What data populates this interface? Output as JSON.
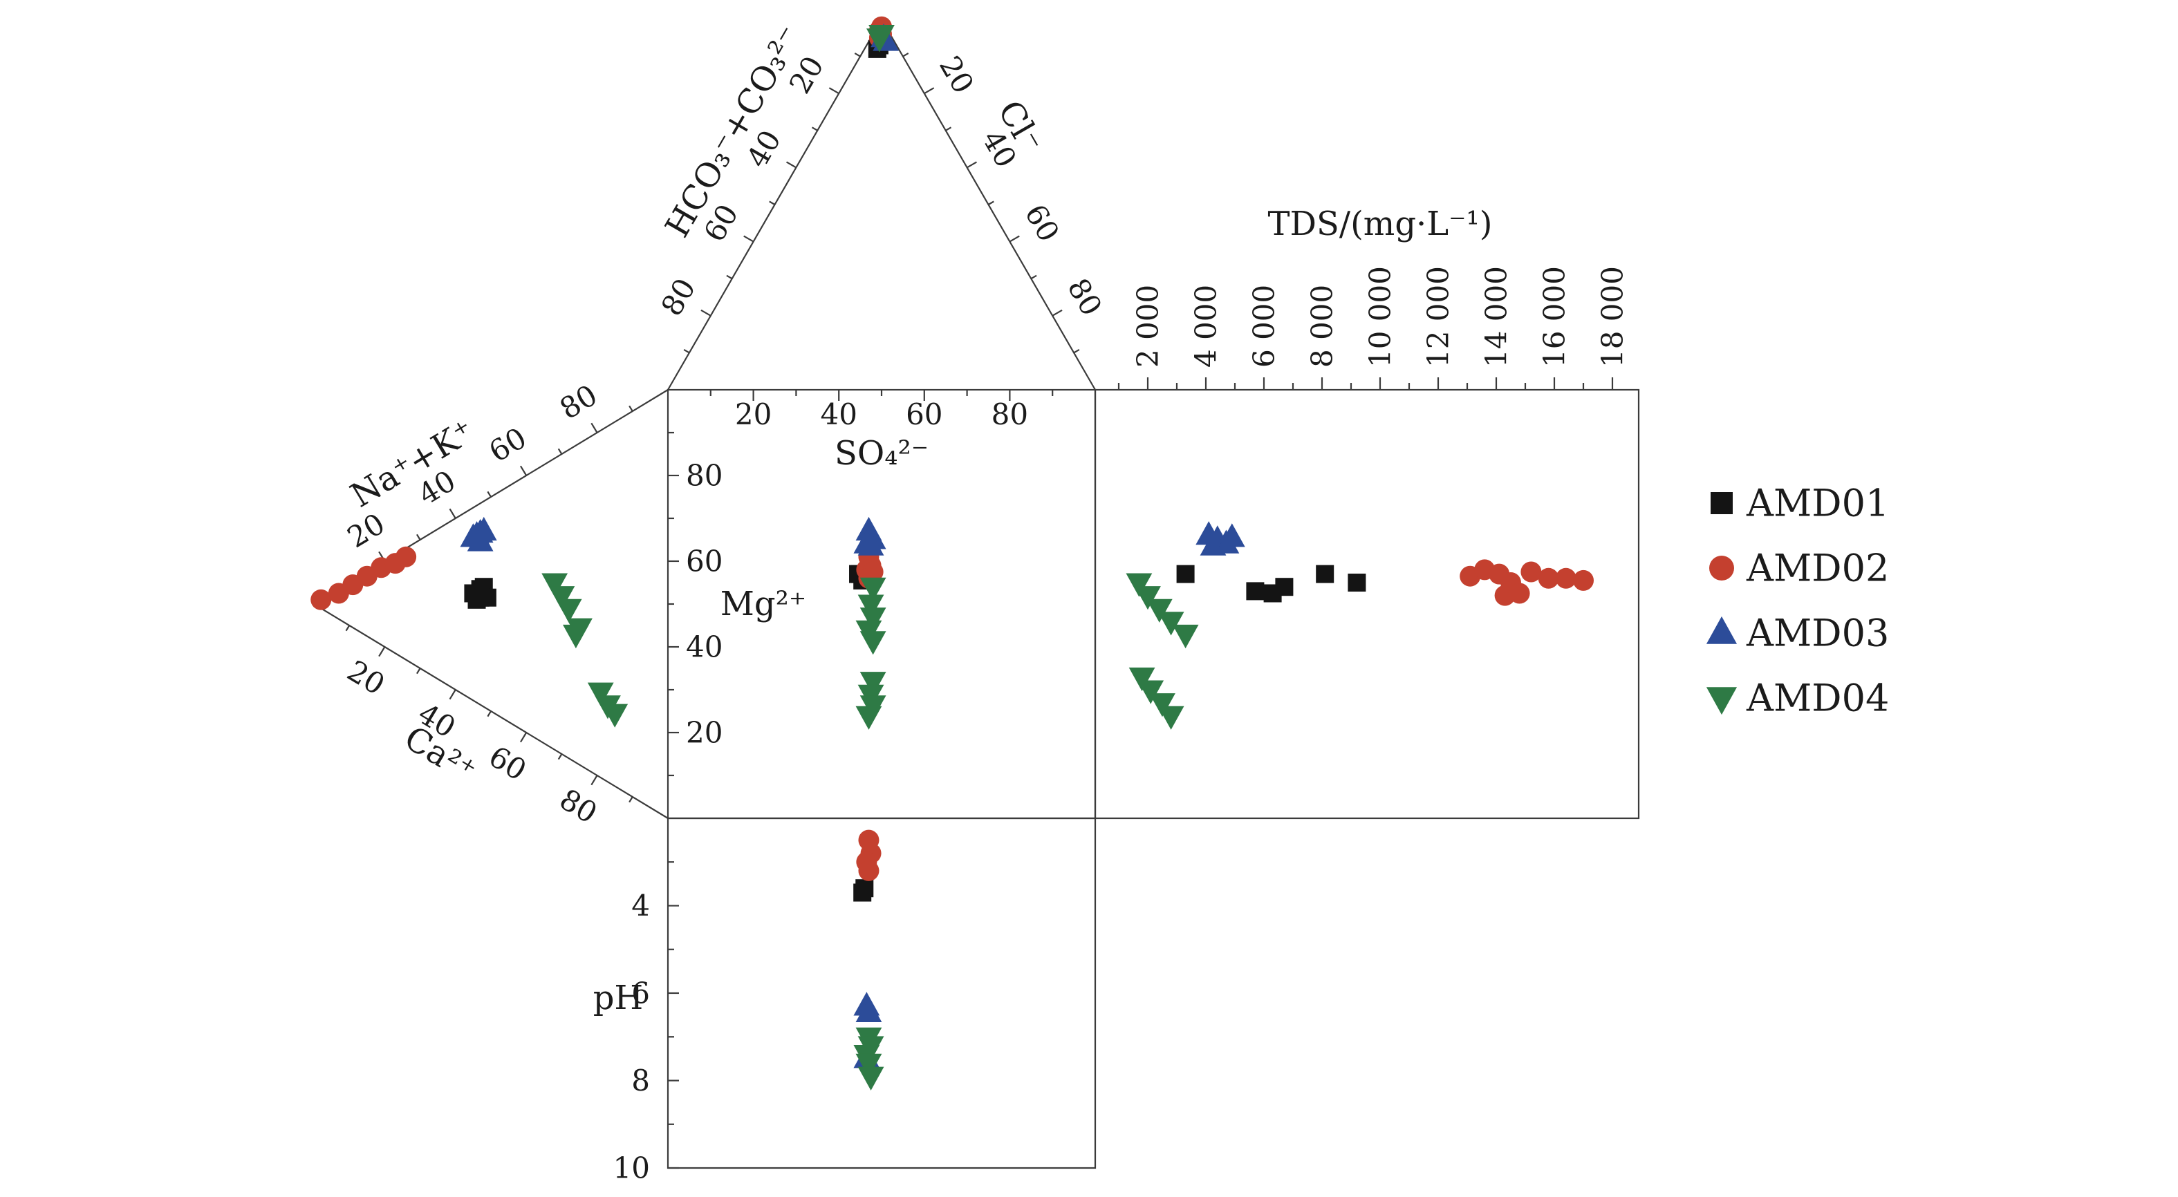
{
  "figure": {
    "background": "#ffffff"
  },
  "colors": {
    "AMD01": "#141414",
    "AMD02": "#c4402f",
    "AMD03": "#2c4c99",
    "AMD04": "#2e7a45"
  },
  "markers": {
    "AMD01": "square",
    "AMD02": "circle",
    "AMD03": "triangle-up",
    "AMD04": "triangle-down"
  },
  "legend": {
    "items": [
      {
        "series": "AMD01",
        "label": "AMD01"
      },
      {
        "series": "AMD02",
        "label": "AMD02"
      },
      {
        "series": "AMD03",
        "label": "AMD03"
      },
      {
        "series": "AMD04",
        "label": "AMD04"
      }
    ]
  },
  "chart_data": {
    "type": "scatter",
    "variant": "durov-diagram",
    "series_names": [
      "AMD01",
      "AMD02",
      "AMD03",
      "AMD04"
    ],
    "panels": {
      "anion_triangle": {
        "left_axis": "HCO₃⁻+CO₃²⁻",
        "right_axis": "Cl⁻",
        "ticks": [
          20,
          40,
          60,
          80
        ],
        "coords": "[SO4, HCO3+CO3, Cl] percent",
        "series": {
          "AMD01": [
            [
              92,
              5,
              3
            ],
            [
              93,
              4,
              3
            ]
          ],
          "AMD02": [
            [
              98,
              1,
              1
            ],
            [
              97,
              2,
              1
            ],
            [
              96,
              2,
              2
            ],
            [
              95,
              3,
              2
            ]
          ],
          "AMD03": [
            [
              95,
              2,
              3
            ],
            [
              94,
              2,
              4
            ]
          ],
          "AMD04": [
            [
              96,
              2,
              2
            ],
            [
              95,
              3,
              2
            ]
          ]
        }
      },
      "cation_triangle": {
        "top_axis": "Na⁺+K⁺",
        "bottom_axis": "Ca²⁺",
        "ticks": [
          20,
          40,
          60,
          80
        ],
        "coords": "[Mg, Na+K, Ca] percent",
        "series": {
          "AMD01": [
            [
              53,
              27,
              20
            ],
            [
              55,
              25,
              20
            ],
            [
              52,
              28,
              20
            ],
            [
              54,
              24,
              22
            ],
            [
              51,
              26,
              23
            ],
            [
              53,
              25,
              22
            ]
          ],
          "AMD02": [
            [
              98,
              2,
              0
            ],
            [
              93,
              6,
              1
            ],
            [
              89,
              10,
              1
            ],
            [
              85,
              14,
              1
            ],
            [
              81,
              18,
              1
            ],
            [
              77,
              21,
              2
            ],
            [
              74,
              24,
              2
            ]
          ],
          "AMD03": [
            [
              53,
              40,
              7
            ],
            [
              54,
              39,
              7
            ],
            [
              52,
              41,
              7
            ],
            [
              53,
              38,
              9
            ],
            [
              55,
              38,
              7
            ]
          ],
          "AMD04": [
            [
              32,
              39,
              29
            ],
            [
              30,
              37,
              33
            ],
            [
              28,
              35,
              37
            ],
            [
              26,
              30,
              44
            ],
            [
              25,
              32,
              43
            ],
            [
              19,
              20,
              61
            ],
            [
              17,
              18,
              65
            ],
            [
              15,
              17,
              68
            ]
          ]
        }
      },
      "center_square": {
        "xlabel": "SO₄²⁻",
        "ylabel": "Mg²⁺",
        "xticks": [
          20,
          40,
          60,
          80
        ],
        "yticks": [
          20,
          40,
          60,
          80
        ],
        "xlim": [
          0,
          100
        ],
        "ylim": [
          0,
          100
        ],
        "coords": "[SO4 percent, Mg percent]",
        "series": {
          "AMD01": [
            [
              45,
              57
            ],
            [
              46,
              56
            ],
            [
              44.5,
              57
            ],
            [
              45.5,
              55.5
            ]
          ],
          "AMD02": [
            [
              47,
              61
            ],
            [
              47.5,
              59
            ],
            [
              46.5,
              58
            ],
            [
              48,
              57.5
            ],
            [
              47,
              56
            ]
          ],
          "AMD03": [
            [
              47,
              67
            ],
            [
              48,
              65
            ],
            [
              46.5,
              64
            ],
            [
              47.5,
              63.5
            ]
          ],
          "AMD04": [
            [
              48,
              54
            ],
            [
              47.5,
              50
            ],
            [
              48,
              47
            ],
            [
              47,
              44
            ],
            [
              48,
              41.5
            ],
            [
              48,
              32
            ],
            [
              47.5,
              29
            ],
            [
              48,
              26.5
            ],
            [
              47,
              24
            ]
          ]
        }
      },
      "tds_panel": {
        "title": "TDS/(mg·L⁻¹)",
        "tick_values": [
          2000,
          4000,
          6000,
          8000,
          10000,
          12000,
          14000,
          16000,
          18000
        ],
        "tick_labels": [
          "2 000",
          "4 000",
          "6 000",
          "8 000",
          "10 000",
          "12 000",
          "14 000",
          "16 000",
          "18 000"
        ],
        "xlim": [
          200,
          18900
        ],
        "coords": "[TDS mg/L, Mg percent]",
        "series": {
          "AMD01": [
            [
              3300,
              57
            ],
            [
              5700,
              53
            ],
            [
              6300,
              52.5
            ],
            [
              6700,
              54
            ],
            [
              8100,
              57
            ],
            [
              9200,
              55
            ]
          ],
          "AMD02": [
            [
              13100,
              56.5
            ],
            [
              13600,
              58
            ],
            [
              14100,
              57
            ],
            [
              14300,
              52
            ],
            [
              14500,
              55
            ],
            [
              14800,
              52.5
            ],
            [
              15200,
              57.5
            ],
            [
              15800,
              56
            ],
            [
              16400,
              56
            ],
            [
              17000,
              55.5
            ]
          ],
          "AMD03": [
            [
              4100,
              66
            ],
            [
              4400,
              65
            ],
            [
              4700,
              64
            ],
            [
              4250,
              63.5
            ],
            [
              4900,
              65.5
            ]
          ],
          "AMD04": [
            [
              1700,
              55
            ],
            [
              2000,
              52
            ],
            [
              2400,
              49
            ],
            [
              2800,
              46
            ],
            [
              3300,
              43
            ],
            [
              1800,
              33
            ],
            [
              2100,
              30
            ],
            [
              2500,
              27
            ],
            [
              2800,
              24
            ]
          ]
        }
      },
      "ph_panel": {
        "ylabel": "pH",
        "yticks": [
          4,
          6,
          8,
          10
        ],
        "ylim": [
          2,
          10
        ],
        "coords": "[SO4 percent, pH]",
        "series": {
          "AMD01": [
            [
              45.5,
              3.7
            ],
            [
              46,
              3.6
            ]
          ],
          "AMD02": [
            [
              47,
              2.5
            ],
            [
              47.5,
              2.8
            ],
            [
              46.5,
              3.0
            ],
            [
              47,
              3.2
            ]
          ],
          "AMD03": [
            [
              46.5,
              6.3
            ],
            [
              47,
              6.45
            ],
            [
              46.5,
              7.5
            ]
          ],
          "AMD04": [
            [
              47,
              7.0
            ],
            [
              47.5,
              7.2
            ],
            [
              46.5,
              7.4
            ],
            [
              47,
              7.6
            ],
            [
              47.5,
              7.9
            ]
          ]
        }
      }
    }
  }
}
